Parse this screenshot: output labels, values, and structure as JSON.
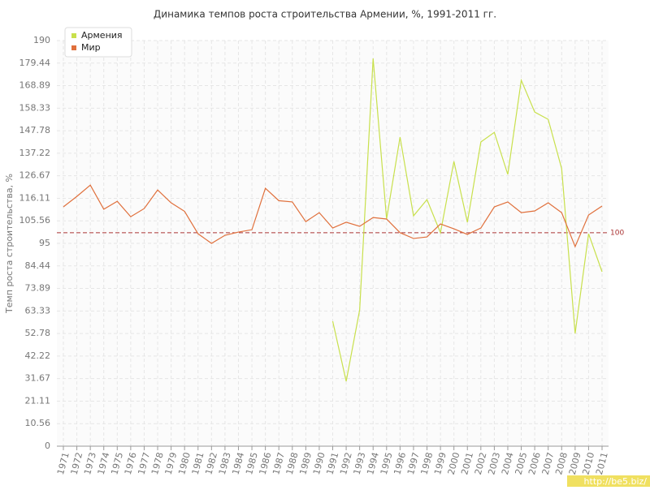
{
  "chart_data": {
    "type": "line",
    "title": "Динамика темпов роста строительства Армении, %, 1991-2011 гг.",
    "y_label": "Темп роста строительства, %",
    "x": [
      1971,
      1972,
      1973,
      1974,
      1975,
      1976,
      1977,
      1978,
      1979,
      1980,
      1981,
      1982,
      1983,
      1984,
      1985,
      1986,
      1987,
      1988,
      1989,
      1990,
      1991,
      1992,
      1993,
      1994,
      1995,
      1996,
      1997,
      1998,
      1999,
      2000,
      2001,
      2002,
      2003,
      2004,
      2005,
      2006,
      2007,
      2008,
      2009,
      2010,
      2011
    ],
    "xlim": [
      1971,
      2011
    ],
    "ylim": [
      0,
      190
    ],
    "yticks": [
      0,
      10.56,
      21.11,
      31.67,
      42.22,
      52.78,
      63.33,
      73.89,
      84.44,
      95,
      105.56,
      116.11,
      126.67,
      137.22,
      147.78,
      158.33,
      168.89,
      179.44,
      190
    ],
    "grid": true,
    "reference_line": 100,
    "series": [
      {
        "name": "Армения",
        "color": "#c8e04c",
        "values": [
          null,
          null,
          null,
          null,
          null,
          null,
          null,
          null,
          null,
          null,
          null,
          null,
          null,
          null,
          null,
          null,
          null,
          null,
          null,
          null,
          58.5,
          30.4,
          63.8,
          181.6,
          106.4,
          144.8,
          107.9,
          115.5,
          100,
          133.4,
          104.9,
          142.5,
          147,
          127.3,
          171.4,
          156.5,
          153.1,
          130,
          52.8,
          99.5,
          81.7
        ]
      },
      {
        "name": "Мир",
        "color": "#e0703c",
        "values": [
          112.1,
          117,
          122.3,
          111,
          114.7,
          107.5,
          111.3,
          120,
          114,
          110,
          99.5,
          95,
          98.8,
          100.3,
          101.4,
          120.8,
          115,
          114.4,
          105.2,
          109.4,
          102.2,
          104.9,
          103,
          107.1,
          106.4,
          100,
          97.3,
          98,
          104.1,
          101.8,
          99.2,
          102.2,
          112.1,
          114.4,
          109.4,
          110.2,
          114,
          109.4,
          93.5,
          108.3,
          112.5
        ]
      }
    ],
    "legend_position": "top-left",
    "watermark": "http://be5.biz/"
  }
}
